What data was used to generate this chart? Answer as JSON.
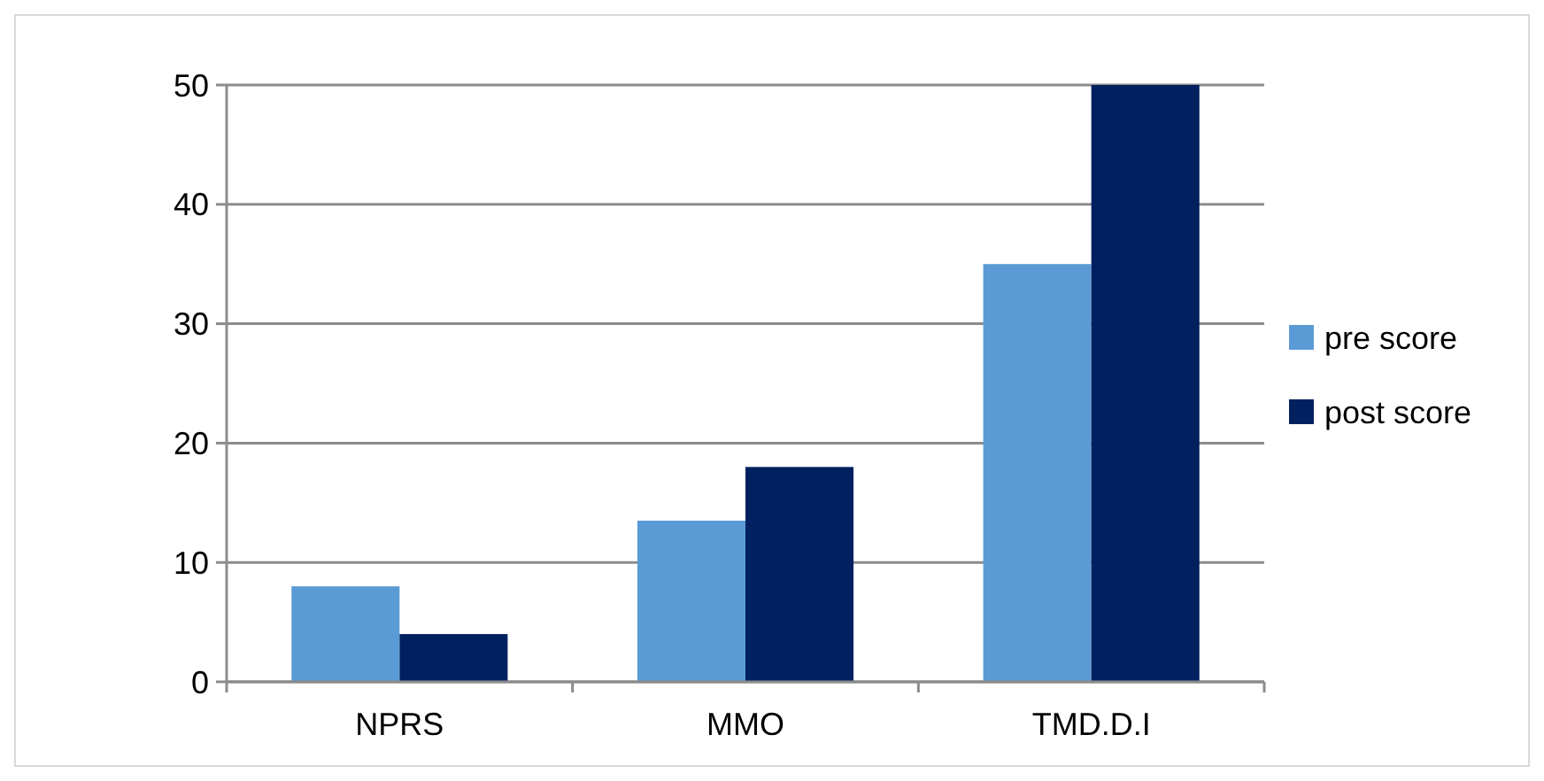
{
  "chart_data": {
    "type": "bar",
    "categories": [
      "NPRS",
      "MMO",
      "TMD.D.I"
    ],
    "series": [
      {
        "name": "pre score",
        "color": "#5b9bd5",
        "values": [
          8,
          13.5,
          35
        ]
      },
      {
        "name": "post score",
        "color": "#002060",
        "values": [
          4,
          18,
          50
        ]
      }
    ],
    "ylim": [
      0,
      50
    ],
    "yticks": [
      0,
      10,
      20,
      30,
      40,
      50
    ],
    "grid": "y",
    "legend": "right"
  }
}
